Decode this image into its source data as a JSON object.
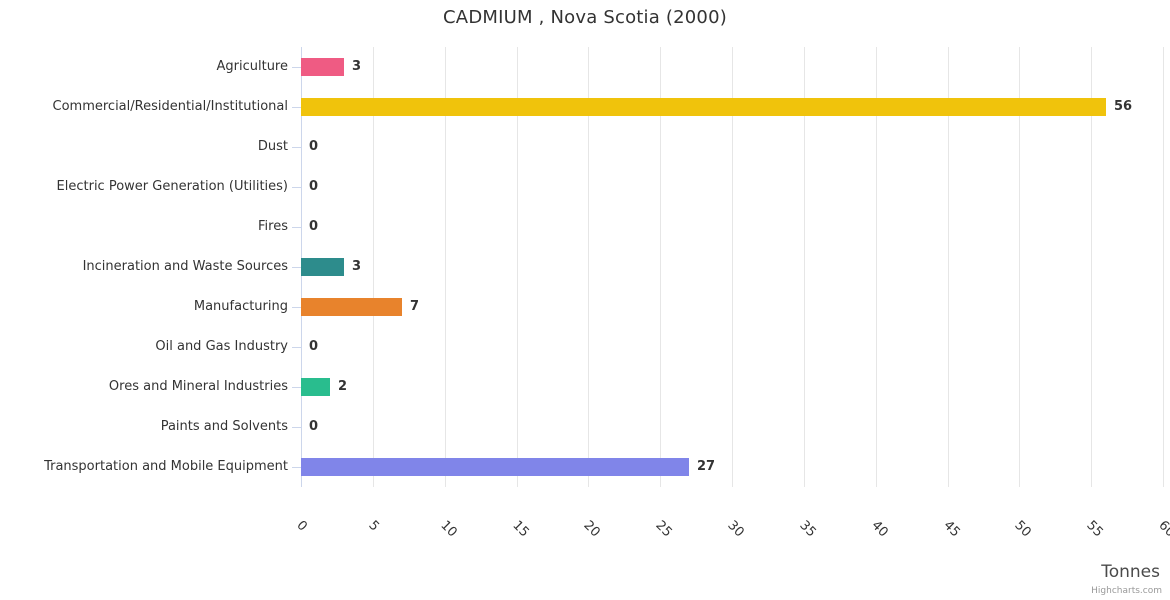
{
  "title": "CADMIUM , Nova Scotia (2000)",
  "credit_label": "Highcharts.com",
  "chart_data": {
    "type": "bar",
    "orientation": "horizontal",
    "title": "CADMIUM , Nova Scotia (2000)",
    "xlabel": "Tonnes",
    "ylabel": "",
    "xlim": [
      0,
      60
    ],
    "xticks": [
      0,
      5,
      10,
      15,
      20,
      25,
      30,
      35,
      40,
      45,
      50,
      55,
      60
    ],
    "grid": true,
    "legend": false,
    "data_labels": true,
    "categories": [
      "Agriculture",
      "Commercial/Residential/Institutional",
      "Dust",
      "Electric Power Generation (Utilities)",
      "Fires",
      "Incineration and Waste Sources",
      "Manufacturing",
      "Oil and Gas Industry",
      "Ores and Mineral Industries",
      "Paints and Solvents",
      "Transportation and Mobile Equipment"
    ],
    "values": [
      3,
      56,
      0,
      0,
      0,
      3,
      7,
      0,
      2,
      0,
      27
    ],
    "bar_colors": [
      "#ef5b83",
      "#f0c30c",
      null,
      null,
      null,
      "#2d8c8c",
      "#e8832c",
      null,
      "#29bd8e",
      null,
      "#8085e9"
    ],
    "style_colors": {
      "gridline": "#e6e6e6",
      "axis_line": "#ccd6eb",
      "title_text": "#333333",
      "label_text": "#333333",
      "data_label_text": "#333333",
      "axis_title_text": "#4a4a4a",
      "credit_text": "#999999"
    }
  }
}
